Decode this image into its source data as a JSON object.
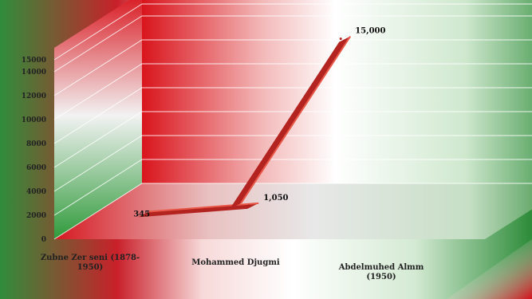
{
  "chart_data": {
    "type": "line",
    "title": "",
    "xlabel": "",
    "ylabel": "",
    "categories": [
      "Zubne Zer seni (1878-1950)",
      "Mohammed Djugmi",
      "Abdelmuhed Almm (1950)"
    ],
    "category_lines": [
      [
        "Zubne Zer seni (1878-",
        "1950)"
      ],
      [
        "Mohammed Djugmi"
      ],
      [
        "Abdelmuhed Almm",
        "(1950)"
      ]
    ],
    "series": [
      {
        "values": [
          345,
          1050,
          15000
        ]
      }
    ],
    "data_labels": [
      "345",
      "1,050",
      "15,000"
    ],
    "y_ticks": [
      "0",
      "2000",
      "4000",
      "6000",
      "8000",
      "10000",
      "12000",
      "14000",
      "15000"
    ],
    "ylim": [
      0,
      16000
    ],
    "grid": true,
    "style": "3d",
    "colors": {
      "line": "#b3231f",
      "line_top": "#e85848",
      "red": "#d8141c",
      "green": "#2e8f3a",
      "grid": "#ffffff"
    }
  }
}
